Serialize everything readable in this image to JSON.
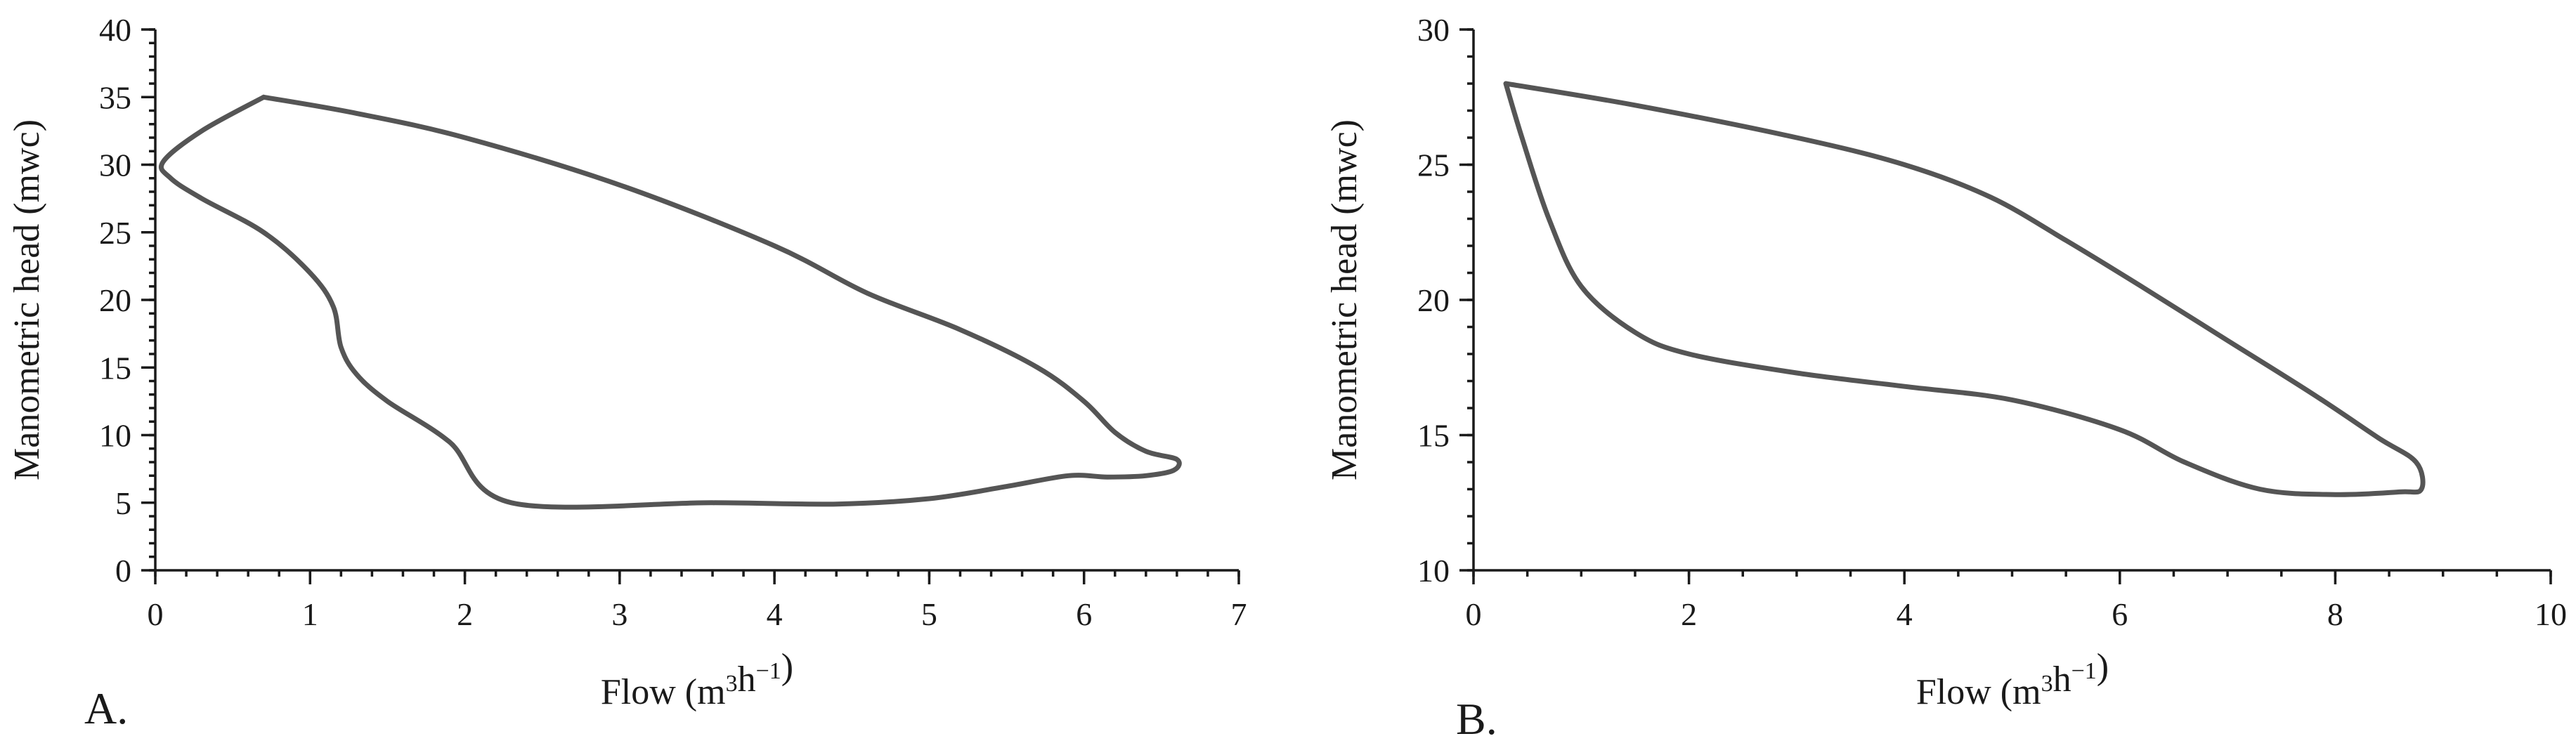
{
  "chart_data": [
    {
      "type": "line",
      "panel_label": "A.",
      "xlabel_main": "Flow (m",
      "xlabel_sup1": "3",
      "xlabel_mid": "h",
      "xlabel_sup2": "−1",
      "xlabel_end": ")",
      "ylabel": "Manometric head  (mwc)",
      "xlim": [
        0,
        7
      ],
      "ylim": [
        0,
        40
      ],
      "xticks": [
        0,
        1,
        2,
        3,
        4,
        5,
        6,
        7
      ],
      "yticks": [
        0,
        5,
        10,
        15,
        20,
        25,
        30,
        35,
        40
      ],
      "x_minor_step": 0.2,
      "y_minor_step": 1,
      "grid": false,
      "color": "#555555",
      "series": [
        {
          "points": [
            [
              0.7,
              35
            ],
            [
              1.3,
              33.8
            ],
            [
              2.0,
              32.0
            ],
            [
              3.0,
              28.5
            ],
            [
              4.0,
              24.0
            ],
            [
              4.6,
              20.5
            ],
            [
              5.2,
              17.8
            ],
            [
              5.7,
              15.0
            ],
            [
              6.0,
              12.5
            ],
            [
              6.2,
              10.2
            ],
            [
              6.4,
              8.8
            ],
            [
              6.6,
              8.2
            ],
            [
              6.58,
              7.4
            ],
            [
              6.4,
              7.0
            ],
            [
              6.15,
              6.9
            ],
            [
              5.9,
              7.0
            ],
            [
              5.5,
              6.2
            ],
            [
              5.0,
              5.3
            ],
            [
              4.4,
              4.9
            ],
            [
              3.6,
              5.0
            ],
            [
              2.3,
              5.0
            ],
            [
              1.9,
              9.5
            ],
            [
              1.5,
              12.5
            ],
            [
              1.3,
              14.5
            ],
            [
              1.2,
              16.5
            ],
            [
              1.15,
              19.5
            ],
            [
              1.0,
              22.0
            ],
            [
              0.7,
              25.0
            ],
            [
              0.3,
              27.5
            ],
            [
              0.1,
              29.0
            ],
            [
              0.05,
              30.2
            ],
            [
              0.3,
              32.5
            ],
            [
              0.7,
              35
            ]
          ]
        }
      ]
    },
    {
      "type": "line",
      "panel_label": "B.",
      "xlabel_main": "Flow (m",
      "xlabel_sup1": "3",
      "xlabel_mid": "h",
      "xlabel_sup2": "−1",
      "xlabel_end": ")",
      "ylabel": "Manometric head  (mwc)",
      "xlim": [
        0,
        10
      ],
      "ylim": [
        10,
        30
      ],
      "xticks": [
        0,
        2,
        4,
        6,
        8,
        10
      ],
      "yticks": [
        10,
        15,
        20,
        25,
        30
      ],
      "x_minor_step": 0.5,
      "y_minor_step": 1,
      "grid": false,
      "color": "#555555",
      "series": [
        {
          "points": [
            [
              0.3,
              28.0
            ],
            [
              1.5,
              27.2
            ],
            [
              3.0,
              26.0
            ],
            [
              4.0,
              25.0
            ],
            [
              4.8,
              23.8
            ],
            [
              5.5,
              22.2
            ],
            [
              6.2,
              20.5
            ],
            [
              7.0,
              18.5
            ],
            [
              7.8,
              16.5
            ],
            [
              8.4,
              14.9
            ],
            [
              8.75,
              14.0
            ],
            [
              8.8,
              13.0
            ],
            [
              8.6,
              12.9
            ],
            [
              8.0,
              12.8
            ],
            [
              7.3,
              13.0
            ],
            [
              6.6,
              14.0
            ],
            [
              6.0,
              15.2
            ],
            [
              5.0,
              16.3
            ],
            [
              4.0,
              16.8
            ],
            [
              3.0,
              17.3
            ],
            [
              2.0,
              18.0
            ],
            [
              1.5,
              18.8
            ],
            [
              1.0,
              20.5
            ],
            [
              0.7,
              23.0
            ],
            [
              0.45,
              26.0
            ],
            [
              0.3,
              28.0
            ]
          ]
        }
      ]
    }
  ]
}
